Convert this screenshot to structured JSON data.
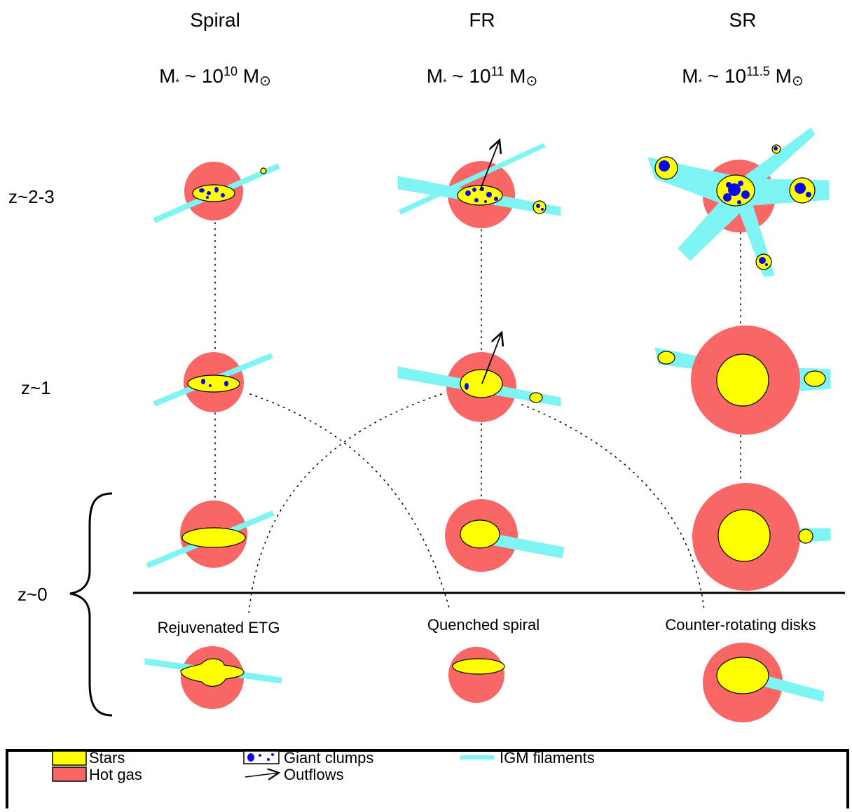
{
  "columns": [
    {
      "title": "Spiral",
      "mass": {
        "symbol": "M",
        "sub": "*",
        "mid": " ~ 10",
        "exp": "10",
        "unit": " M",
        "sun": "⊙"
      }
    },
    {
      "title": "FR",
      "mass": {
        "symbol": "M",
        "sub": "*",
        "mid": " ~ 10",
        "exp": "11",
        "unit": " M",
        "sun": "⊙"
      }
    },
    {
      "title": "SR",
      "mass": {
        "symbol": "M",
        "sub": "*",
        "mid": " ~ 10",
        "exp": "11.5",
        "unit": " M",
        "sun": "⊙"
      }
    }
  ],
  "rows": [
    "z~2-3",
    "z~1",
    "z~0"
  ],
  "outcomes": [
    "Rejuvenated ETG",
    "Quenched spiral",
    "Counter-rotating disks"
  ],
  "legend": {
    "stars": "Stars",
    "hot_gas": "Hot gas",
    "clumps": "Giant clumps",
    "outflows": "Outflows",
    "filaments": "IGM filaments"
  }
}
